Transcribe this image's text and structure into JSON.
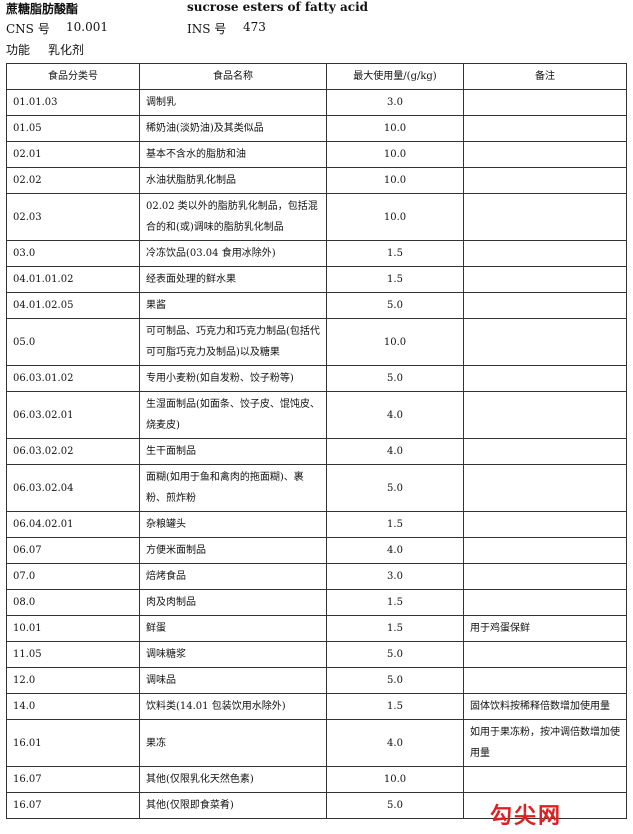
{
  "header": {
    "name_cn": "蔗糖脂肪酸酯",
    "name_en": "sucrose esters of fatty acid",
    "cns_label": "CNS 号",
    "cns": "10.001",
    "ins_label": "INS 号",
    "ins": "473",
    "function_label": "功能",
    "function": "乳化剂"
  },
  "table": {
    "columns": [
      "食品分类号",
      "食品名称",
      "最大使用量/(g/kg)",
      "备注"
    ],
    "rows": [
      {
        "code": "01.01.03",
        "name": "调制乳",
        "max": "3.0"
      },
      {
        "code": "01.05",
        "name": "稀奶油(淡奶油)及其类似品",
        "max": "10.0"
      },
      {
        "code": "02.01",
        "name": "基本不含水的脂肪和油",
        "max": "10.0"
      },
      {
        "code": "02.02",
        "name": "水油状脂肪乳化制品",
        "max": "10.0"
      },
      {
        "code": "02.03",
        "name": "02.02 类以外的脂肪乳化制品，包括混合的和(或)调味的脂肪乳化制品",
        "max": "10.0"
      },
      {
        "code": "03.0",
        "name": "冷冻饮品(03.04 食用冰除外)",
        "max": "1.5"
      },
      {
        "code": "04.01.01.02",
        "name": "经表面处理的鲜水果",
        "max": "1.5"
      },
      {
        "code": "04.01.02.05",
        "name": "果酱",
        "max": "5.0"
      },
      {
        "code": "05.0",
        "name": "可可制品、巧克力和巧克力制品(包括代可可脂巧克力及制品)以及糖果",
        "max": "10.0"
      },
      {
        "code": "06.03.01.02",
        "name": "专用小麦粉(如自发粉、饺子粉等)",
        "max": "5.0"
      },
      {
        "code": "06.03.02.01",
        "name": "生湿面制品(如面条、饺子皮、馄饨皮、烧麦皮)",
        "max": "4.0"
      },
      {
        "code": "06.03.02.02",
        "name": "生干面制品",
        "max": "4.0"
      },
      {
        "code": "06.03.02.04",
        "name": "面糊(如用于鱼和禽肉的拖面糊)、裹粉、煎炸粉",
        "max": "5.0"
      },
      {
        "code": "06.04.02.01",
        "name": "杂粮罐头",
        "max": "1.5"
      },
      {
        "code": "06.07",
        "name": "方便米面制品",
        "max": "4.0"
      },
      {
        "code": "07.0",
        "name": "焙烤食品",
        "max": "3.0"
      },
      {
        "code": "08.0",
        "name": "肉及肉制品",
        "max": "1.5"
      },
      {
        "code": "10.01",
        "name": "鲜蛋",
        "max": "1.5",
        "note": "用于鸡蛋保鲜"
      },
      {
        "code": "11.05",
        "name": "调味糖浆",
        "max": "5.0"
      },
      {
        "code": "12.0",
        "name": "调味品",
        "max": "5.0"
      },
      {
        "code": "14.0",
        "name": "饮料类(14.01 包装饮用水除外)",
        "max": "1.5",
        "note": "固体饮料按稀释倍数增加使用量"
      },
      {
        "code": "16.01",
        "name": "果冻",
        "max": "4.0",
        "note": "如用于果冻粉，按冲调倍数增加使用量"
      },
      {
        "code": "16.07",
        "name": "其他(仅限乳化天然色素)",
        "max": "10.0"
      },
      {
        "code": "16.07",
        "name": "其他(仅限即食菜肴)",
        "max": "5.0"
      }
    ]
  },
  "watermark": "勾尖网"
}
